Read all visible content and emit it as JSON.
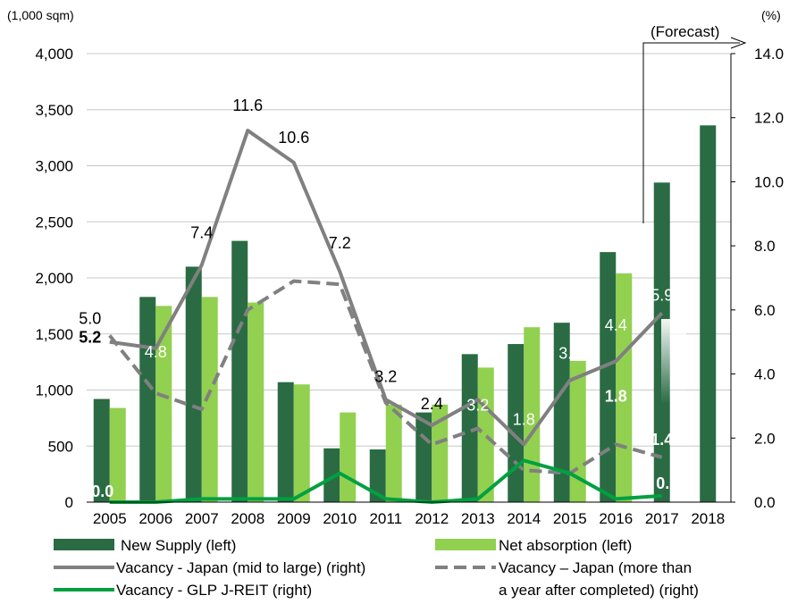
{
  "colors": {
    "new_supply": "#2a6b44",
    "net_absorption": "#92d050",
    "vacancy_japan": "#808080",
    "vacancy_year": "#808080",
    "vacancy_glp": "#00a040"
  },
  "chart_data": {
    "type": "bar",
    "categories": [
      "2005",
      "2006",
      "2007",
      "2008",
      "2009",
      "2010",
      "2011",
      "2012",
      "2013",
      "2014",
      "2015",
      "2016",
      "2017",
      "2018"
    ],
    "left_axis": {
      "unit": "(1,000 sqm)",
      "ylim": [
        0,
        4000
      ],
      "ticks": [
        "0",
        "500",
        "1,000",
        "1,500",
        "2,000",
        "2,500",
        "3,000",
        "3,500",
        "4,000"
      ]
    },
    "right_axis": {
      "unit": "(%)",
      "ylim": [
        0,
        14
      ],
      "ticks": [
        "0.0",
        "2.0",
        "4.0",
        "6.0",
        "8.0",
        "10.0",
        "12.0",
        "14.0"
      ]
    },
    "forecast_label": "(Forecast)",
    "series": [
      {
        "name": "New Supply (left)",
        "type": "bar",
        "axis": "left",
        "values": [
          920,
          1830,
          2100,
          2330,
          1070,
          480,
          470,
          800,
          1320,
          1410,
          1600,
          2230,
          2850,
          3360
        ]
      },
      {
        "name": "Net absorption (left)",
        "type": "bar",
        "axis": "left",
        "values": [
          840,
          1750,
          1830,
          1780,
          1050,
          800,
          870,
          870,
          1200,
          1560,
          1260,
          2040,
          null,
          null
        ]
      },
      {
        "name": "Vacancy - Japan (mid to large) (right)",
        "type": "line",
        "axis": "right",
        "values": [
          5.0,
          4.8,
          7.4,
          11.6,
          10.6,
          7.2,
          3.2,
          2.4,
          3.2,
          1.8,
          3.8,
          4.4,
          5.9,
          null
        ],
        "labels": [
          "5.0",
          "4.8",
          "7.4",
          "11.6",
          "10.6",
          "7.2",
          "3.2",
          "2.4",
          "3.2",
          "1.8",
          "3.8",
          "4.4",
          "5.9",
          ""
        ]
      },
      {
        "name": "Vacancy – Japan (more than a year after completed) (right)",
        "type": "dashed-line",
        "axis": "right",
        "values": [
          5.2,
          3.4,
          2.9,
          6.0,
          6.9,
          6.8,
          3.1,
          1.8,
          2.3,
          1.0,
          0.9,
          1.8,
          1.4,
          null
        ],
        "labels": [
          "5.2",
          "",
          "",
          "",
          "",
          "",
          "",
          "",
          "",
          "",
          "",
          "1.8",
          "1.4",
          ""
        ]
      },
      {
        "name": "Vacancy - GLP J-REIT (right)",
        "type": "line",
        "axis": "right",
        "values": [
          0.0,
          0.0,
          0.1,
          0.1,
          0.1,
          0.9,
          0.1,
          0.0,
          0.1,
          1.3,
          0.9,
          0.1,
          0.2,
          null
        ],
        "labels": [
          "0.0",
          "",
          "",
          "",
          "",
          "",
          "",
          "",
          "",
          "",
          "",
          "",
          "0.2",
          ""
        ]
      }
    ],
    "legend": {
      "new_supply": "New Supply (left)",
      "net_absorption": "Net absorption (left)",
      "vacancy_japan": "Vacancy - Japan (mid to large) (right)",
      "vacancy_year_1": "Vacancy – Japan (more than",
      "vacancy_year_2": "a year after completed) (right)",
      "vacancy_glp": "Vacancy - GLP J-REIT (right)"
    }
  }
}
